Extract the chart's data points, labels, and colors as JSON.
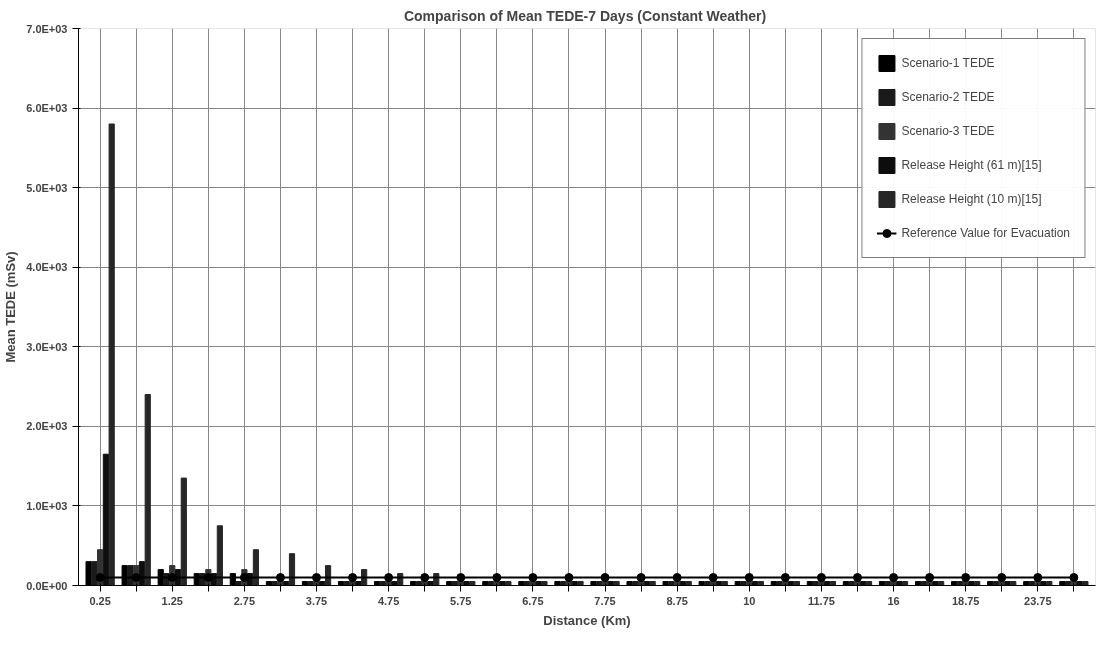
{
  "chart_data": {
    "type": "bar",
    "title": "Comparison of Mean TEDE-7 Days  (Constant Weather)",
    "xlabel": "Distance (Km)",
    "ylabel": "Mean TEDE (mSv)",
    "categories": [
      "0.25",
      null,
      "1.25",
      null,
      "2.75",
      null,
      "3.75",
      null,
      "4.75",
      null,
      "5.75",
      null,
      "6.75",
      null,
      "7.75",
      null,
      "8.75",
      null,
      "10",
      null,
      "11.75",
      null,
      "16",
      null,
      "18.75",
      null,
      "23.75",
      null
    ],
    "series": [
      {
        "name": "Scenario-1 TEDE",
        "color": "#000000",
        "values": [
          300,
          250,
          200,
          150,
          150,
          50,
          50,
          50,
          50,
          50,
          50,
          50,
          50,
          50,
          50,
          50,
          50,
          50,
          50,
          50,
          50,
          50,
          50,
          50,
          50,
          50,
          50,
          50
        ]
      },
      {
        "name": "Scenario-2 TEDE",
        "color": "#1a1a1a",
        "values": [
          300,
          250,
          150,
          150,
          50,
          50,
          50,
          50,
          50,
          50,
          50,
          50,
          50,
          50,
          50,
          50,
          50,
          50,
          50,
          50,
          50,
          50,
          50,
          50,
          50,
          50,
          50,
          50
        ]
      },
      {
        "name": "Scenario-3 TEDE",
        "color": "#333333",
        "values": [
          450,
          250,
          250,
          200,
          200,
          50,
          50,
          50,
          50,
          50,
          50,
          50,
          50,
          50,
          50,
          50,
          50,
          50,
          50,
          50,
          50,
          50,
          50,
          50,
          50,
          50,
          50,
          50
        ]
      },
      {
        "name": "Release Height (61 m)[15]",
        "color": "#0d0d0d",
        "values": [
          1650,
          300,
          200,
          150,
          150,
          50,
          50,
          50,
          50,
          50,
          50,
          50,
          50,
          50,
          50,
          50,
          50,
          50,
          50,
          50,
          50,
          50,
          50,
          50,
          50,
          50,
          50,
          50
        ]
      },
      {
        "name": "Release Height (10 m)[15]",
        "color": "#262626",
        "values": [
          5800,
          2400,
          1350,
          750,
          450,
          400,
          250,
          200,
          150,
          150,
          50,
          50,
          50,
          50,
          50,
          50,
          50,
          50,
          50,
          50,
          50,
          50,
          50,
          50,
          50,
          50,
          50,
          50
        ]
      },
      {
        "name": "Reference Value for Evacuation",
        "type": "line",
        "color": "#000000",
        "marker": "circle",
        "values": [
          100,
          100,
          100,
          100,
          100,
          100,
          100,
          100,
          100,
          100,
          100,
          100,
          100,
          100,
          100,
          100,
          100,
          100,
          100,
          100,
          100,
          100,
          100,
          100,
          100,
          100,
          100,
          100
        ]
      }
    ],
    "ylim": [
      0,
      7000
    ],
    "yticks": [
      {
        "value": 0,
        "label": "0.0E+00"
      },
      {
        "value": 1000,
        "label": "1.0E+03"
      },
      {
        "value": 2000,
        "label": "2.0E+03"
      },
      {
        "value": 3000,
        "label": "3.0E+03"
      },
      {
        "value": 4000,
        "label": "4.0E+03"
      },
      {
        "value": 5000,
        "label": "5.0E+03"
      },
      {
        "value": 6000,
        "label": "6.0E+03"
      },
      {
        "value": 7000,
        "label": "7.0E+03"
      }
    ],
    "grid": true,
    "legend": "top right"
  }
}
